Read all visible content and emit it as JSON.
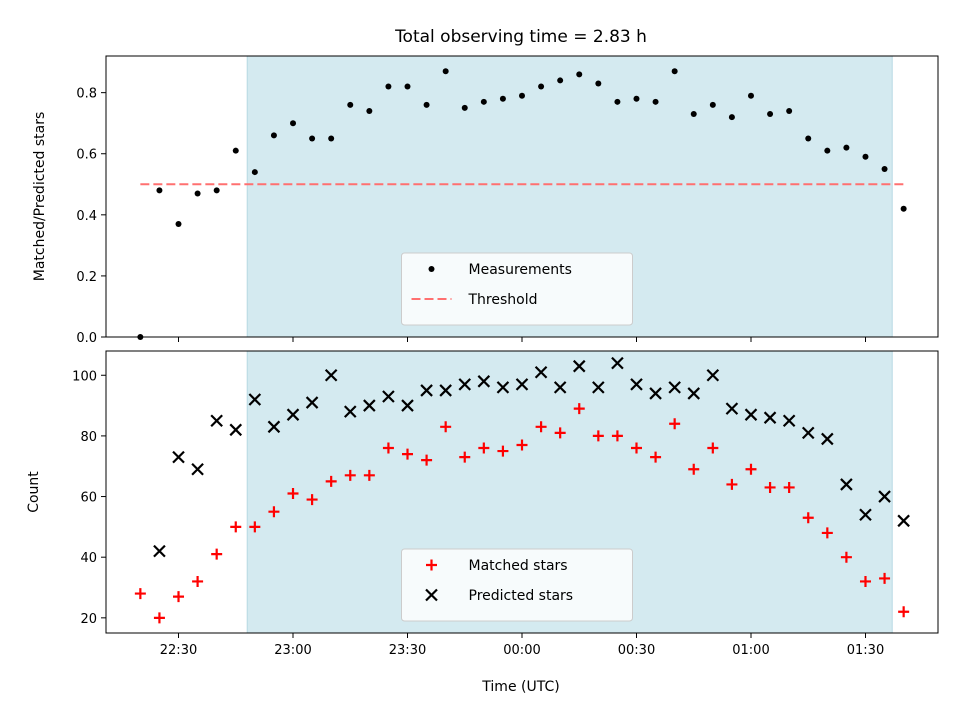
{
  "chart_data": {
    "type": "scatter",
    "title": "Total observing time = 2.83 h",
    "xlabel": "Time (UTC)",
    "x_unit": "UTC time",
    "x_ticks": [
      "22:30",
      "23:00",
      "23:30",
      "00:00",
      "00:30",
      "01:00",
      "01:30"
    ],
    "observing_window": {
      "start": "22:48",
      "end": "01:37",
      "color": "#d4eaf0"
    },
    "times": [
      "22:20",
      "22:25",
      "22:30",
      "22:35",
      "22:40",
      "22:45",
      "22:50",
      "22:55",
      "23:00",
      "23:05",
      "23:10",
      "23:15",
      "23:20",
      "23:25",
      "23:30",
      "23:35",
      "23:40",
      "23:45",
      "23:50",
      "23:55",
      "00:00",
      "00:05",
      "00:10",
      "00:15",
      "00:20",
      "00:25",
      "00:30",
      "00:35",
      "00:40",
      "00:45",
      "00:50",
      "00:55",
      "01:00",
      "01:05",
      "01:10",
      "01:15",
      "01:20",
      "01:25",
      "01:30",
      "01:35",
      "01:40"
    ],
    "panels": [
      {
        "ylabel": "Matched/Predicted stars",
        "ylim": [
          0.0,
          0.92
        ],
        "y_ticks": [
          "0.0",
          "0.2",
          "0.4",
          "0.6",
          "0.8"
        ],
        "legend_position": "lower center",
        "threshold": {
          "name": "Threshold",
          "value": 0.5,
          "color": "#ff7070"
        },
        "series": [
          {
            "name": "Measurements",
            "marker": "dot",
            "color": "#000000",
            "values": [
              0.0,
              0.48,
              0.37,
              0.47,
              0.48,
              0.61,
              0.54,
              0.66,
              0.7,
              0.65,
              0.65,
              0.76,
              0.74,
              0.82,
              0.82,
              0.76,
              0.87,
              0.75,
              0.77,
              0.78,
              0.79,
              0.82,
              0.84,
              0.86,
              0.83,
              0.77,
              0.78,
              0.77,
              0.87,
              0.73,
              0.76,
              0.72,
              0.79,
              0.73,
              0.74,
              0.65,
              0.61,
              0.62,
              0.59,
              0.55,
              0.42
            ]
          }
        ]
      },
      {
        "ylabel": "Count",
        "ylim": [
          15,
          108
        ],
        "y_ticks": [
          "20",
          "40",
          "60",
          "80",
          "100"
        ],
        "legend_position": "lower center",
        "series": [
          {
            "name": "Matched stars",
            "marker": "plus",
            "color": "#ff0000",
            "values": [
              28,
              20,
              27,
              32,
              41,
              50,
              50,
              55,
              61,
              59,
              65,
              67,
              67,
              76,
              74,
              72,
              83,
              73,
              76,
              75,
              77,
              83,
              81,
              89,
              80,
              80,
              76,
              73,
              84,
              69,
              76,
              64,
              69,
              63,
              63,
              53,
              48,
              40,
              32,
              33,
              22
            ]
          },
          {
            "name": "Predicted stars",
            "marker": "x",
            "color": "#000000",
            "values": [
              null,
              42,
              73,
              69,
              85,
              82,
              92,
              83,
              87,
              91,
              100,
              88,
              90,
              93,
              90,
              95,
              95,
              97,
              98,
              96,
              97,
              101,
              96,
              103,
              96,
              104,
              97,
              94,
              96,
              94,
              100,
              89,
              87,
              86,
              85,
              81,
              79,
              64,
              54,
              60,
              52
            ]
          }
        ]
      }
    ]
  }
}
